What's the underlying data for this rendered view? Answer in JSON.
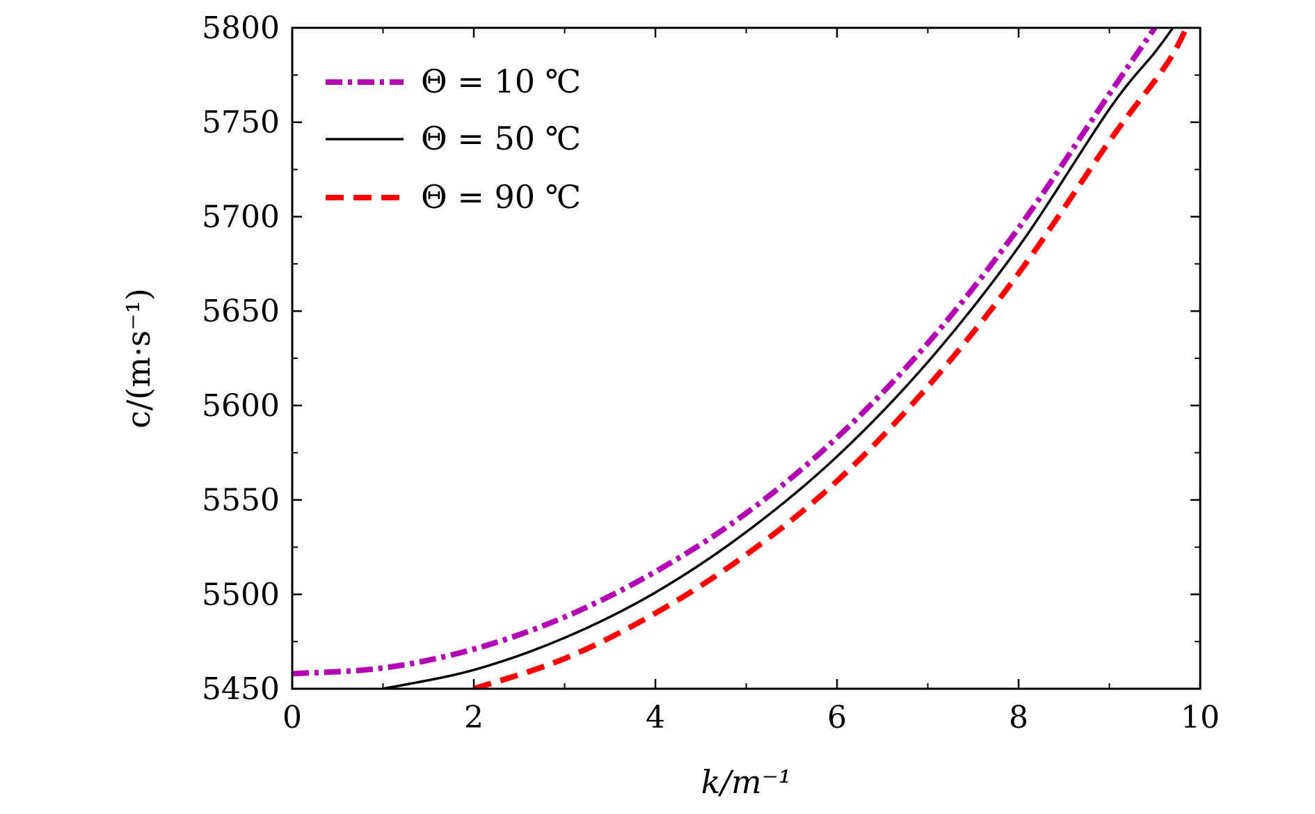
{
  "chart_data": {
    "type": "line",
    "title": "",
    "xlabel": "k/m⁻¹",
    "ylabel": "c/(m·s⁻¹)",
    "xlim": [
      0,
      10
    ],
    "ylim": [
      5450,
      5800
    ],
    "x_ticks": [
      0,
      2,
      4,
      6,
      8,
      10
    ],
    "x_tick_labels": [
      "0",
      "2",
      "4",
      "6",
      "8",
      "10"
    ],
    "y_ticks": [
      5450,
      5500,
      5550,
      5600,
      5650,
      5700,
      5750,
      5800
    ],
    "y_tick_labels": [
      "5450",
      "5500",
      "5550",
      "5600",
      "5650",
      "5700",
      "5750",
      "5800"
    ],
    "grid": false,
    "legend_position": "top-left",
    "x": [
      0,
      1,
      2,
      3,
      4,
      5,
      6,
      7,
      8,
      9,
      9.5,
      9.7,
      9.85
    ],
    "series": [
      {
        "name": "Θ = 10 ℃",
        "color": "#b300b3",
        "dash": "dash-dot",
        "values": [
          5458,
          5461,
          5471,
          5488,
          5512,
          5543,
          5583,
          5633,
          5694,
          5765,
          5800,
          null,
          null
        ]
      },
      {
        "name": "Θ = 50 ℃",
        "color": "#000000",
        "dash": "solid",
        "values": [
          null,
          5450,
          5460,
          5477,
          5501,
          5533,
          5573,
          5623,
          5684,
          5757,
          5787,
          5800,
          null
        ]
      },
      {
        "name": "Θ = 90 ℃",
        "color": "#ff0000",
        "dash": "dashed",
        "values": [
          null,
          null,
          5450,
          5466,
          5490,
          5521,
          5560,
          5610,
          5670,
          5740,
          5772,
          5786,
          5800
        ]
      }
    ]
  }
}
